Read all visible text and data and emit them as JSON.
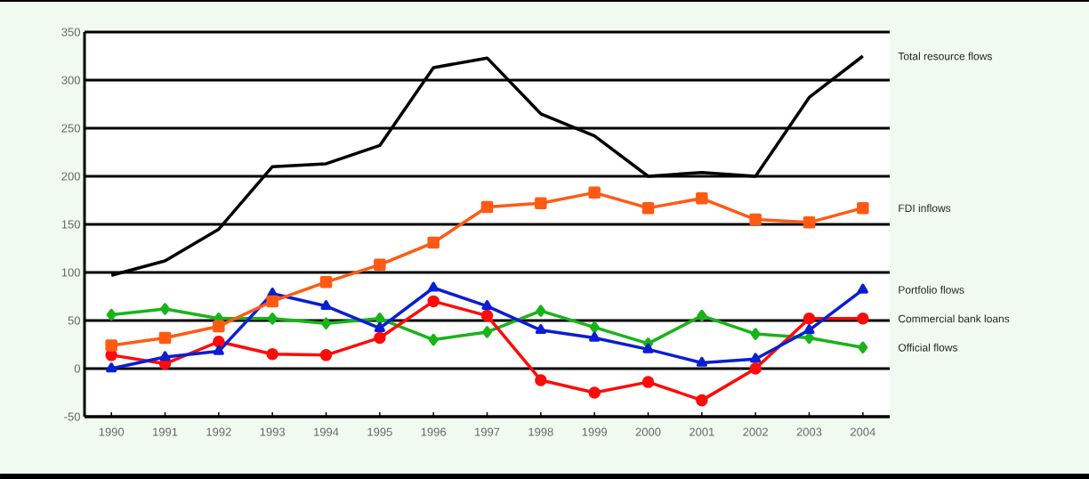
{
  "chart_data": {
    "type": "line",
    "categories": [
      "1990",
      "1991",
      "1992",
      "1993",
      "1994",
      "1995",
      "1996",
      "1997",
      "1998",
      "1999",
      "2000",
      "2001",
      "2002",
      "2003",
      "2004"
    ],
    "series": [
      {
        "name": "Total resource flows",
        "color": "#000000",
        "marker": "none",
        "values": [
          97,
          112,
          145,
          210,
          213,
          232,
          313,
          323,
          265,
          242,
          200,
          204,
          200,
          282,
          325
        ]
      },
      {
        "name": "FDI inflows",
        "color": "#ff5a14",
        "marker": "square",
        "values": [
          24,
          32,
          44,
          70,
          90,
          108,
          131,
          168,
          172,
          183,
          167,
          177,
          155,
          152,
          167
        ]
      },
      {
        "name": "Portfolio flows",
        "color": "#0a1ed2",
        "marker": "triangle",
        "values": [
          0,
          12,
          18,
          78,
          65,
          42,
          84,
          65,
          40,
          32,
          20,
          6,
          10,
          40,
          82
        ]
      },
      {
        "name": "Commercial bank loans",
        "color": "#ff0a0a",
        "marker": "circle",
        "values": [
          14,
          5,
          28,
          15,
          14,
          32,
          70,
          55,
          -12,
          -25,
          -14,
          -33,
          0,
          52,
          52
        ]
      },
      {
        "name": "Official flows",
        "color": "#18b418",
        "marker": "diamond",
        "values": [
          56,
          62,
          52,
          52,
          47,
          52,
          30,
          38,
          60,
          43,
          26,
          55,
          36,
          32,
          22
        ]
      }
    ],
    "ylim": [
      -50,
      350
    ],
    "yticks": [
      -50,
      0,
      50,
      100,
      150,
      200,
      250,
      300,
      350
    ],
    "grid": "y",
    "legend": "right",
    "line_style": "solid"
  }
}
